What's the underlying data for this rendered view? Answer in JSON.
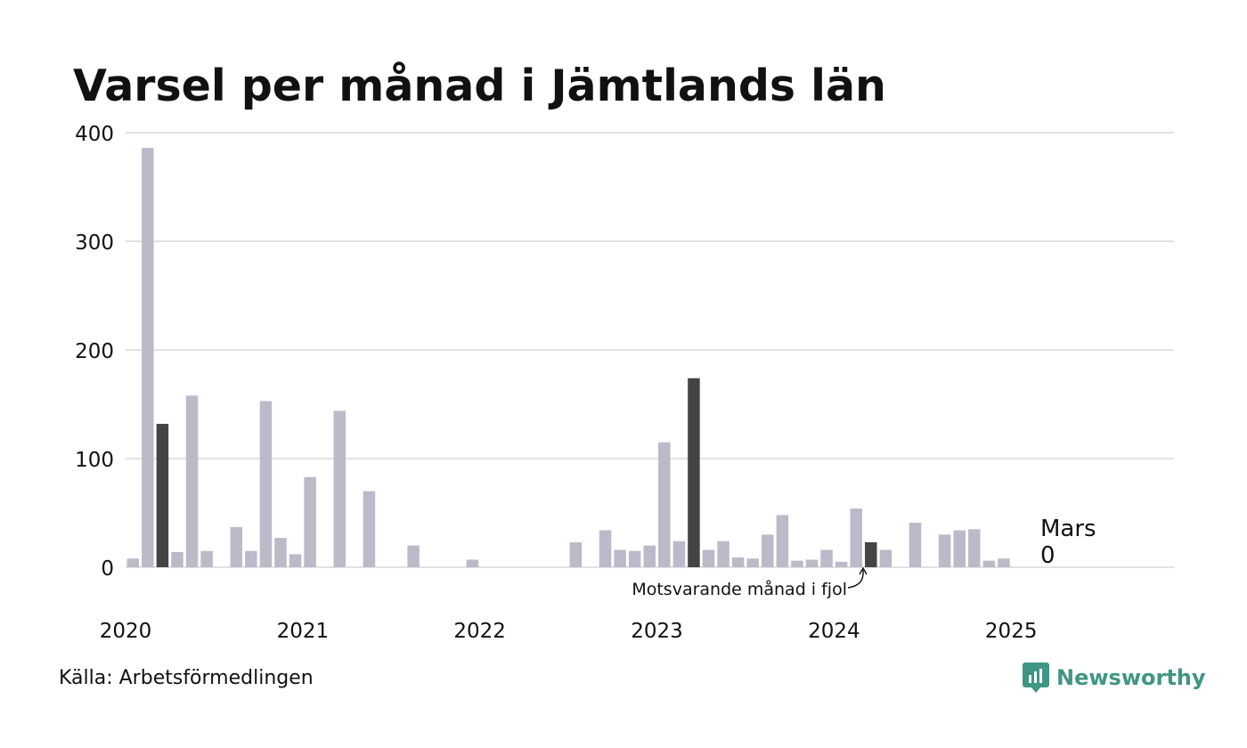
{
  "title": "Varsel per månad i Jämtlands län",
  "source": "Källa: Arbetsförmedlingen",
  "brand": {
    "name": "Newsworthy",
    "icon": "newsworthy-logo-icon",
    "color": "#3f9684"
  },
  "annotation": "Motsvarande månad i fjol",
  "latest": {
    "month": "Mars",
    "value": "0"
  },
  "colors": {
    "bar": "#bcbac9",
    "highlight": "#444444",
    "grid": "#e2e2e2",
    "text": "#111111"
  },
  "chart_data": {
    "type": "bar",
    "title": "Varsel per månad i Jämtlands län",
    "xlabel": "",
    "ylabel": "",
    "ylim": [
      0,
      400
    ],
    "yticks": [
      0,
      100,
      200,
      300,
      400
    ],
    "xticks": [
      "2020",
      "2021",
      "2022",
      "2023",
      "2024",
      "2025"
    ],
    "grid": true,
    "highlight_months": [
      "2020-03",
      "2023-03",
      "2024-03"
    ],
    "categories": [
      "2020-01",
      "2020-02",
      "2020-03",
      "2020-04",
      "2020-05",
      "2020-06",
      "2020-07",
      "2020-08",
      "2020-09",
      "2020-10",
      "2020-11",
      "2020-12",
      "2021-01",
      "2021-02",
      "2021-03",
      "2021-04",
      "2021-05",
      "2021-06",
      "2021-07",
      "2021-08",
      "2021-09",
      "2021-10",
      "2021-11",
      "2021-12",
      "2022-01",
      "2022-02",
      "2022-03",
      "2022-04",
      "2022-05",
      "2022-06",
      "2022-07",
      "2022-08",
      "2022-09",
      "2022-10",
      "2022-11",
      "2022-12",
      "2023-01",
      "2023-02",
      "2023-03",
      "2023-04",
      "2023-05",
      "2023-06",
      "2023-07",
      "2023-08",
      "2023-09",
      "2023-10",
      "2023-11",
      "2023-12",
      "2024-01",
      "2024-02",
      "2024-03",
      "2024-04",
      "2024-05",
      "2024-06",
      "2024-07",
      "2024-08",
      "2024-09",
      "2024-10",
      "2024-11",
      "2024-12",
      "2025-01",
      "2025-02",
      "2025-03"
    ],
    "values": [
      8,
      386,
      132,
      14,
      158,
      15,
      0,
      37,
      15,
      153,
      27,
      12,
      83,
      0,
      144,
      0,
      70,
      0,
      0,
      20,
      0,
      0,
      0,
      7,
      0,
      0,
      0,
      0,
      0,
      0,
      23,
      0,
      34,
      16,
      15,
      20,
      115,
      24,
      174,
      16,
      24,
      9,
      8,
      30,
      48,
      6,
      7,
      16,
      5,
      54,
      23,
      16,
      0,
      41,
      0,
      30,
      34,
      35,
      6,
      8,
      0,
      0,
      0
    ]
  }
}
